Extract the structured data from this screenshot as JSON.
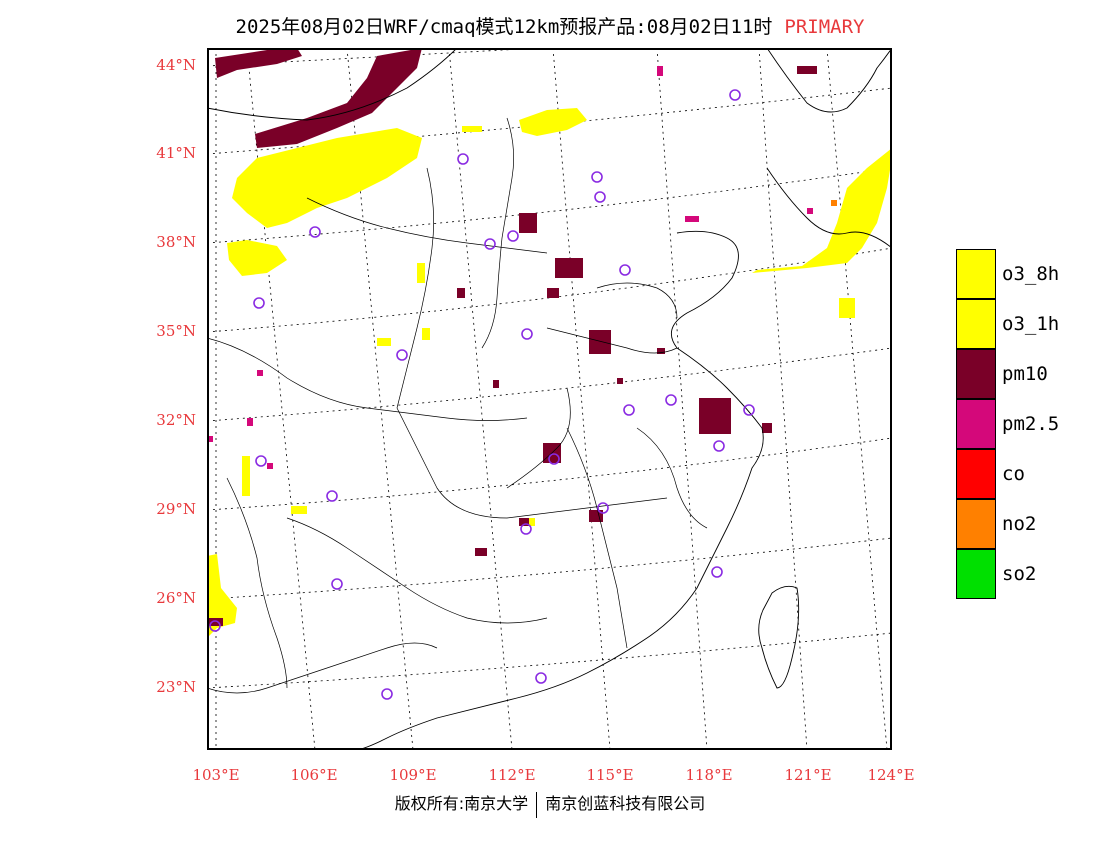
{
  "title": {
    "text": "2025年08月02日WRF/cmaq模式12km预报产品:08月02日11时",
    "tag": "PRIMARY",
    "tag_color": "#e8393c"
  },
  "axes": {
    "lat_labels": [
      "44°N",
      "41°N",
      "38°N",
      "35°N",
      "32°N",
      "29°N",
      "26°N",
      "23°N"
    ],
    "lon_labels": [
      "103°E",
      "106°E",
      "109°E",
      "112°E",
      "115°E",
      "118°E",
      "121°E",
      "124°E"
    ],
    "label_color": "#e8393c"
  },
  "legend": {
    "items": [
      {
        "label": "o3_8h",
        "color": "#ffff00"
      },
      {
        "label": "o3_1h",
        "color": "#ffff00"
      },
      {
        "label": "pm10",
        "color": "#7a0028"
      },
      {
        "label": "pm2.5",
        "color": "#d4087a"
      },
      {
        "label": "co",
        "color": "#ff0000"
      },
      {
        "label": "no2",
        "color": "#ff8000"
      },
      {
        "label": "so2",
        "color": "#00e000"
      }
    ]
  },
  "footer": {
    "left": "版权所有:南京大学",
    "right": "南京创蓝科技有限公司"
  },
  "colors": {
    "o3": "#ffff00",
    "pm10": "#7a0028",
    "pm25": "#d4087a",
    "no2": "#ff8000",
    "station_marker": "#8a2be2"
  }
}
